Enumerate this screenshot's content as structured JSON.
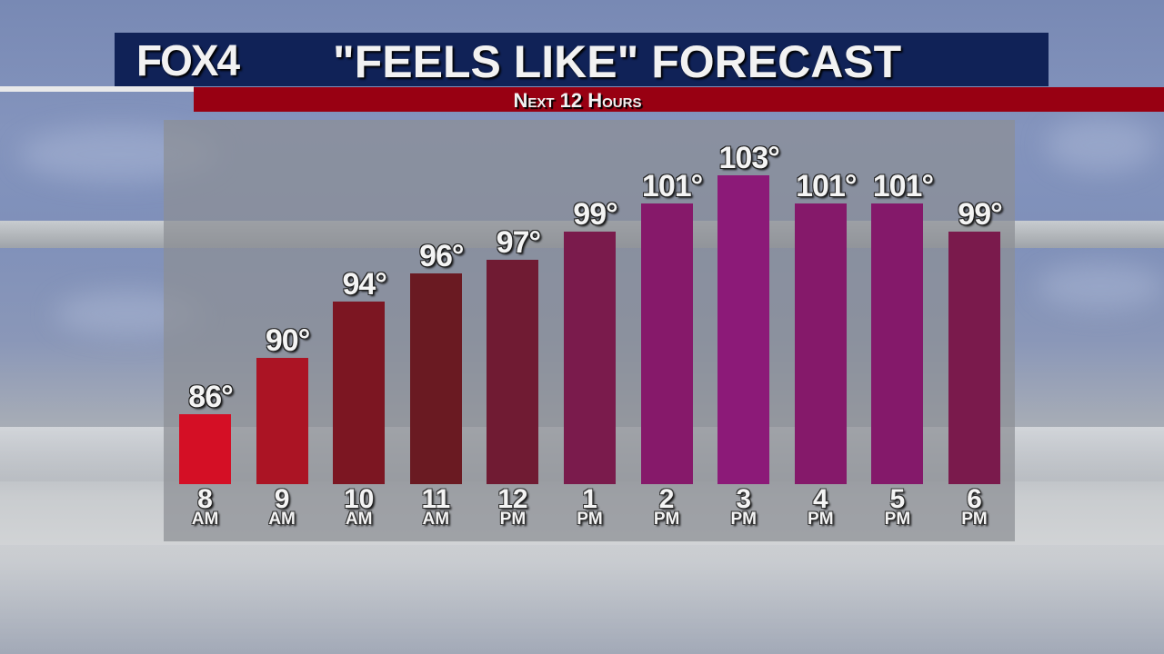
{
  "header": {
    "logo": "FOX4",
    "title": "\"FEELS LIKE\" FORECAST",
    "subtitle": "Next 12 Hours"
  },
  "colors": {
    "header_navy": "#102257",
    "subtitle_red": "#980012"
  },
  "chart_data": {
    "type": "bar",
    "title": "\"FEELS LIKE\" FORECAST",
    "subtitle": "Next 12 Hours",
    "xlabel": "",
    "ylabel": "",
    "unit": "°F",
    "categories": [
      "8 AM",
      "9 AM",
      "10 AM",
      "11 AM",
      "12 PM",
      "1 PM",
      "2 PM",
      "3 PM",
      "4 PM",
      "5 PM",
      "6 PM"
    ],
    "hours": [
      "8",
      "9",
      "10",
      "11",
      "12",
      "1",
      "2",
      "3",
      "4",
      "5",
      "6"
    ],
    "periods": [
      "AM",
      "AM",
      "AM",
      "AM",
      "PM",
      "PM",
      "PM",
      "PM",
      "PM",
      "PM",
      "PM"
    ],
    "values": [
      86,
      90,
      94,
      96,
      97,
      99,
      101,
      103,
      101,
      101,
      99
    ],
    "labels": [
      "86°",
      "90°",
      "94°",
      "96°",
      "97°",
      "99°",
      "101°",
      "103°",
      "101°",
      "101°",
      "99°"
    ],
    "bar_colors": [
      "#d40f25",
      "#ab1424",
      "#7c1622",
      "#6a1a22",
      "#701b33",
      "#7a1b4c",
      "#86196a",
      "#8c1a78",
      "#85196a",
      "#84196a",
      "#7a1a4c"
    ],
    "grid": false,
    "legend": "none",
    "ylim": [
      81,
      103
    ]
  }
}
